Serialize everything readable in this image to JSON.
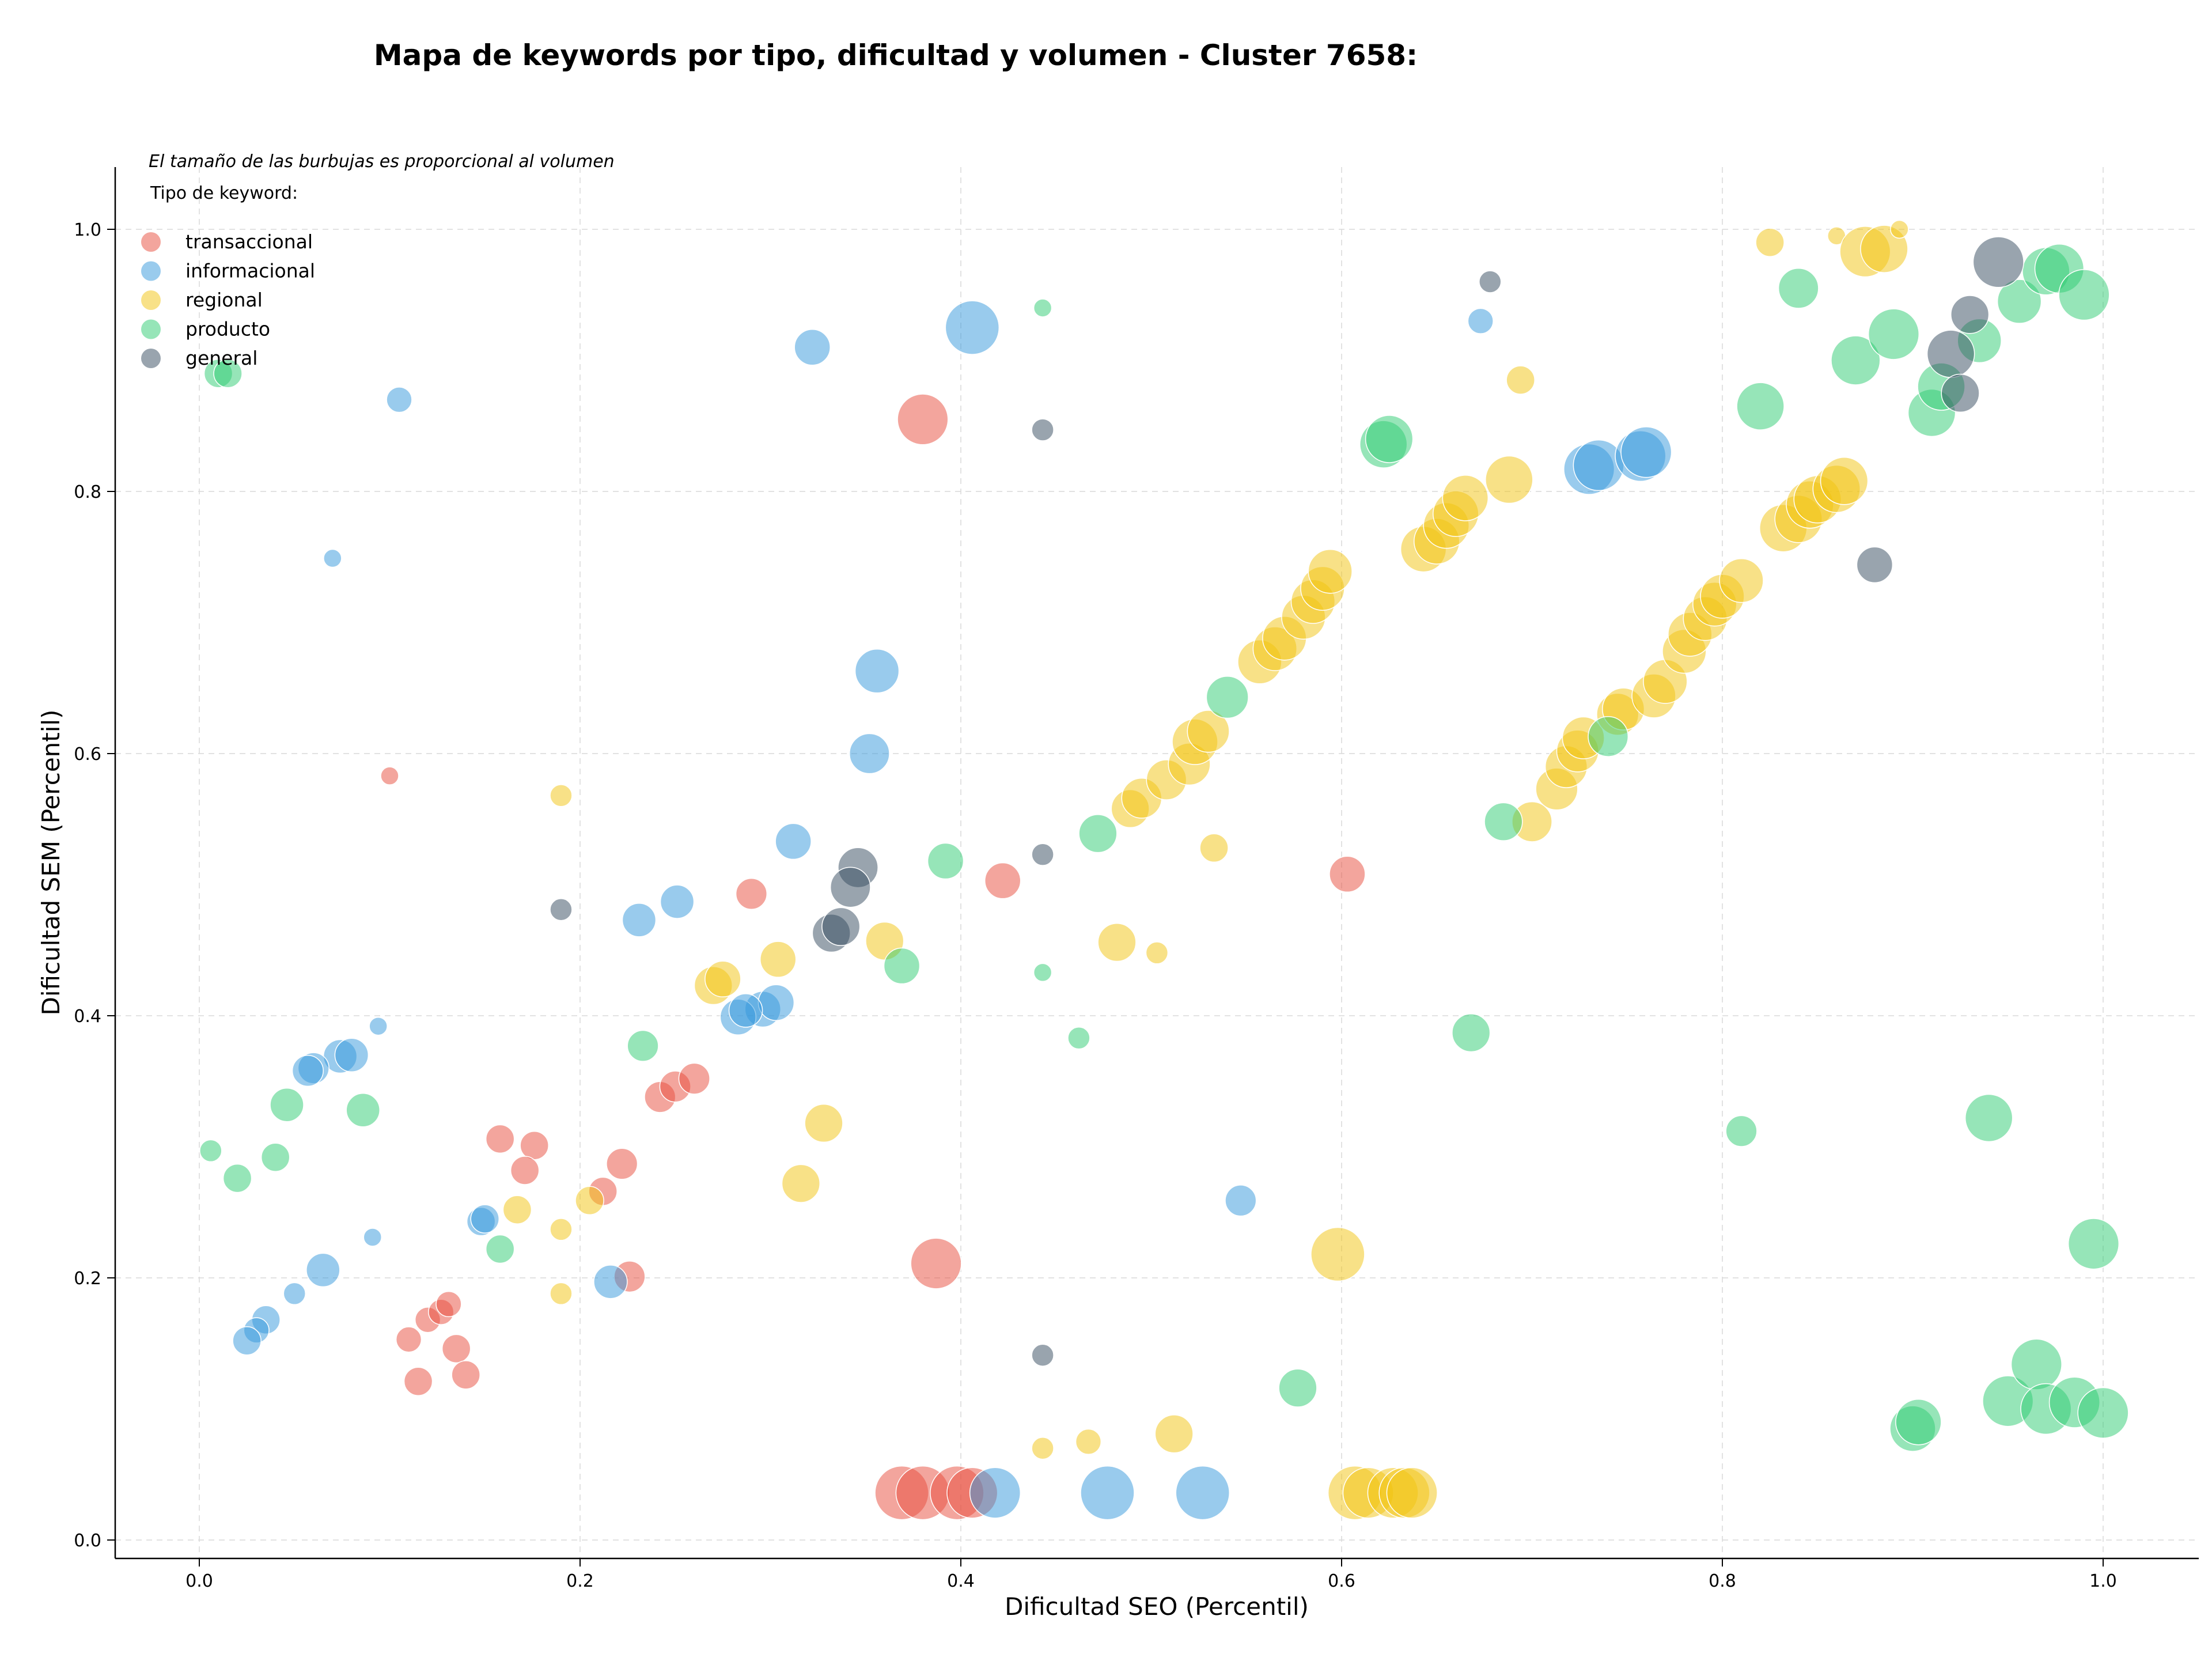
{
  "chart_data": {
    "type": "scatter",
    "title": "Mapa de keywords por tipo, dificultad y volumen - Cluster 7658:",
    "xlabel": "Dificultad SEO (Percentil)",
    "ylabel": "Dificultad SEM (Percentil)",
    "xlim": [
      -0.045,
      1.05
    ],
    "ylim": [
      -0.012,
      1.048
    ],
    "xticks": [
      "0.0",
      "0.2",
      "0.4",
      "0.6",
      "0.8",
      "1.0"
    ],
    "yticks": [
      "0.0",
      "0.2",
      "0.4",
      "0.6",
      "0.8",
      "1.0"
    ],
    "grid": true,
    "legend": {
      "placement": "top-left",
      "note": "El tamaño de las burbujas es proporcional al volumen",
      "title": "Tipo de keyword:"
    },
    "colors": {
      "transaccional": "#e74c3c",
      "informacional": "#3498db",
      "regional": "#f1c40f",
      "producto": "#2ecc71",
      "general": "#34495e"
    },
    "series": [
      {
        "name": "transaccional",
        "points": [
          [
            0.38,
            0.855,
            8
          ],
          [
            0.1,
            0.583,
            1
          ],
          [
            0.29,
            0.493,
            3
          ],
          [
            0.422,
            0.503,
            4
          ],
          [
            0.603,
            0.508,
            4
          ],
          [
            0.242,
            0.338,
            3
          ],
          [
            0.25,
            0.346,
            3
          ],
          [
            0.26,
            0.352,
            3
          ],
          [
            0.158,
            0.306,
            2.5
          ],
          [
            0.176,
            0.301,
            2.5
          ],
          [
            0.171,
            0.282,
            2.5
          ],
          [
            0.222,
            0.287,
            3
          ],
          [
            0.212,
            0.266,
            2.5
          ],
          [
            0.226,
            0.201,
            3
          ],
          [
            0.387,
            0.211,
            8
          ],
          [
            0.11,
            0.153,
            2
          ],
          [
            0.12,
            0.168,
            2
          ],
          [
            0.127,
            0.174,
            2
          ],
          [
            0.131,
            0.18,
            2
          ],
          [
            0.135,
            0.146,
            2.5
          ],
          [
            0.14,
            0.126,
            2.5
          ],
          [
            0.115,
            0.121,
            2.5
          ],
          [
            0.369,
            0.036,
            9
          ],
          [
            0.38,
            0.036,
            9
          ],
          [
            0.398,
            0.036,
            9
          ],
          [
            0.406,
            0.036,
            8
          ]
        ]
      },
      {
        "name": "informacional",
        "points": [
          [
            0.105,
            0.87,
            2
          ],
          [
            0.07,
            0.749,
            1
          ],
          [
            0.322,
            0.91,
            4
          ],
          [
            0.406,
            0.925,
            9
          ],
          [
            0.356,
            0.663,
            6
          ],
          [
            0.352,
            0.6,
            5
          ],
          [
            0.312,
            0.533,
            4
          ],
          [
            0.251,
            0.487,
            3.5
          ],
          [
            0.231,
            0.473,
            3.5
          ],
          [
            0.296,
            0.405,
            4
          ],
          [
            0.303,
            0.41,
            4
          ],
          [
            0.283,
            0.399,
            4
          ],
          [
            0.287,
            0.404,
            3.5
          ],
          [
            0.094,
            0.392,
            1
          ],
          [
            0.074,
            0.369,
            3.5
          ],
          [
            0.08,
            0.37,
            3.5
          ],
          [
            0.06,
            0.36,
            3
          ],
          [
            0.057,
            0.358,
            3
          ],
          [
            0.148,
            0.243,
            2.5
          ],
          [
            0.15,
            0.245,
            2.5
          ],
          [
            0.091,
            0.231,
            1
          ],
          [
            0.065,
            0.206,
            3.5
          ],
          [
            0.216,
            0.197,
            3.5
          ],
          [
            0.05,
            0.188,
            1.5
          ],
          [
            0.035,
            0.168,
            2.5
          ],
          [
            0.03,
            0.16,
            2
          ],
          [
            0.025,
            0.152,
            2.5
          ],
          [
            0.547,
            0.259,
            3
          ],
          [
            0.673,
            0.93,
            2
          ],
          [
            0.73,
            0.817,
            8
          ],
          [
            0.735,
            0.82,
            8
          ],
          [
            0.757,
            0.827,
            8
          ],
          [
            0.76,
            0.83,
            8
          ],
          [
            0.477,
            0.036,
            9
          ],
          [
            0.527,
            0.036,
            9
          ],
          [
            0.418,
            0.036,
            8
          ]
        ]
      },
      {
        "name": "regional",
        "points": [
          [
            0.19,
            0.568,
            1.5
          ],
          [
            0.19,
            0.237,
            1.5
          ],
          [
            0.19,
            0.188,
            1.5
          ],
          [
            0.167,
            0.252,
            2.5
          ],
          [
            0.205,
            0.259,
            2.5
          ],
          [
            0.27,
            0.423,
            4.5
          ],
          [
            0.275,
            0.428,
            4
          ],
          [
            0.304,
            0.443,
            4
          ],
          [
            0.36,
            0.457,
            4.5
          ],
          [
            0.328,
            0.318,
            4.5
          ],
          [
            0.316,
            0.272,
            4.5
          ],
          [
            0.482,
            0.456,
            4.5
          ],
          [
            0.503,
            0.448,
            1.5
          ],
          [
            0.533,
            0.528,
            2.5
          ],
          [
            0.489,
            0.558,
            4.5
          ],
          [
            0.495,
            0.566,
            5
          ],
          [
            0.508,
            0.58,
            5
          ],
          [
            0.52,
            0.592,
            5.5
          ],
          [
            0.523,
            0.609,
            6.5
          ],
          [
            0.53,
            0.617,
            5.5
          ],
          [
            0.557,
            0.67,
            6
          ],
          [
            0.565,
            0.68,
            6
          ],
          [
            0.57,
            0.688,
            6
          ],
          [
            0.58,
            0.704,
            6
          ],
          [
            0.585,
            0.716,
            6
          ],
          [
            0.59,
            0.726,
            6
          ],
          [
            0.594,
            0.739,
            6
          ],
          [
            0.598,
            0.218,
            9
          ],
          [
            0.643,
            0.756,
            6.5
          ],
          [
            0.65,
            0.762,
            6.5
          ],
          [
            0.655,
            0.774,
            6.5
          ],
          [
            0.66,
            0.783,
            6.5
          ],
          [
            0.665,
            0.795,
            6.5
          ],
          [
            0.688,
            0.809,
            7
          ],
          [
            0.694,
            0.885,
            2.5
          ],
          [
            0.7,
            0.548,
            5
          ],
          [
            0.713,
            0.573,
            5.5
          ],
          [
            0.718,
            0.59,
            5.5
          ],
          [
            0.724,
            0.602,
            5.5
          ],
          [
            0.727,
            0.612,
            5.5
          ],
          [
            0.745,
            0.63,
            5.5
          ],
          [
            0.748,
            0.634,
            5.5
          ],
          [
            0.764,
            0.644,
            6
          ],
          [
            0.77,
            0.655,
            6
          ],
          [
            0.78,
            0.678,
            6
          ],
          [
            0.783,
            0.691,
            6
          ],
          [
            0.791,
            0.703,
            6
          ],
          [
            0.796,
            0.714,
            6
          ],
          [
            0.8,
            0.72,
            6
          ],
          [
            0.81,
            0.732,
            6
          ],
          [
            0.832,
            0.772,
            7
          ],
          [
            0.84,
            0.779,
            7
          ],
          [
            0.846,
            0.79,
            7
          ],
          [
            0.85,
            0.794,
            7
          ],
          [
            0.86,
            0.802,
            7
          ],
          [
            0.864,
            0.808,
            7
          ],
          [
            0.825,
            0.99,
            2.5
          ],
          [
            0.86,
            0.995,
            1
          ],
          [
            0.875,
            0.983,
            8
          ],
          [
            0.885,
            0.985,
            7
          ],
          [
            0.893,
            1.0,
            1
          ],
          [
            0.443,
            0.07,
            1.5
          ],
          [
            0.467,
            0.075,
            2
          ],
          [
            0.512,
            0.081,
            4.5
          ],
          [
            0.607,
            0.036,
            9
          ],
          [
            0.614,
            0.036,
            8
          ],
          [
            0.627,
            0.036,
            8
          ],
          [
            0.633,
            0.036,
            8
          ],
          [
            0.637,
            0.036,
            8
          ]
        ]
      },
      {
        "name": "producto",
        "points": [
          [
            0.01,
            0.89,
            2.5
          ],
          [
            0.015,
            0.89,
            2.5
          ],
          [
            0.443,
            0.94,
            1
          ],
          [
            0.392,
            0.518,
            4
          ],
          [
            0.369,
            0.438,
            4
          ],
          [
            0.472,
            0.539,
            4.5
          ],
          [
            0.54,
            0.643,
            5.5
          ],
          [
            0.443,
            0.433,
            1
          ],
          [
            0.462,
            0.383,
            1.5
          ],
          [
            0.233,
            0.377,
            3
          ],
          [
            0.046,
            0.332,
            3.5
          ],
          [
            0.086,
            0.328,
            3.5
          ],
          [
            0.006,
            0.297,
            1.5
          ],
          [
            0.02,
            0.276,
            2.5
          ],
          [
            0.04,
            0.292,
            2.5
          ],
          [
            0.158,
            0.222,
            2.5
          ],
          [
            0.577,
            0.116,
            4.5
          ],
          [
            0.622,
            0.836,
            7
          ],
          [
            0.625,
            0.84,
            7
          ],
          [
            0.668,
            0.387,
            4.5
          ],
          [
            0.685,
            0.548,
            4.5
          ],
          [
            0.74,
            0.613,
            5
          ],
          [
            0.81,
            0.312,
            3
          ],
          [
            0.82,
            0.865,
            7
          ],
          [
            0.84,
            0.955,
            5
          ],
          [
            0.87,
            0.9,
            7.5
          ],
          [
            0.89,
            0.92,
            8
          ],
          [
            0.91,
            0.86,
            7
          ],
          [
            0.915,
            0.88,
            7
          ],
          [
            0.935,
            0.915,
            6
          ],
          [
            0.956,
            0.945,
            6
          ],
          [
            0.97,
            0.968,
            7
          ],
          [
            0.977,
            0.97,
            7.5
          ],
          [
            0.99,
            0.95,
            8
          ],
          [
            0.94,
            0.322,
            7
          ],
          [
            0.995,
            0.226,
            8
          ],
          [
            0.9,
            0.085,
            6.5
          ],
          [
            0.903,
            0.09,
            6.5
          ],
          [
            0.95,
            0.106,
            8
          ],
          [
            0.965,
            0.134,
            8
          ],
          [
            0.97,
            0.1,
            8
          ],
          [
            0.985,
            0.105,
            8
          ],
          [
            1.0,
            0.097,
            8
          ]
        ]
      },
      {
        "name": "general",
        "points": [
          [
            0.19,
            0.481,
            1.5
          ],
          [
            0.443,
            0.847,
            1.5
          ],
          [
            0.443,
            0.523,
            1.5
          ],
          [
            0.443,
            0.141,
            1.5
          ],
          [
            0.346,
            0.513,
            5
          ],
          [
            0.342,
            0.498,
            5
          ],
          [
            0.332,
            0.463,
            4.5
          ],
          [
            0.337,
            0.468,
            4.5
          ],
          [
            0.678,
            0.96,
            1.5
          ],
          [
            0.88,
            0.744,
            4
          ],
          [
            0.945,
            0.975,
            8
          ],
          [
            0.93,
            0.935,
            4.5
          ],
          [
            0.92,
            0.905,
            7
          ],
          [
            0.925,
            0.875,
            4.5
          ]
        ]
      }
    ]
  }
}
